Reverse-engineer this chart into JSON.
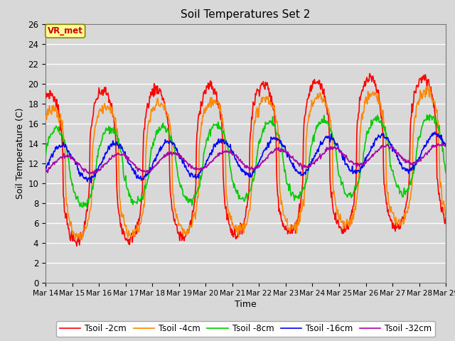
{
  "title": "Soil Temperatures Set 2",
  "xlabel": "Time",
  "ylabel": "Soil Temperature (C)",
  "ylim": [
    0,
    26
  ],
  "yticks": [
    0,
    2,
    4,
    6,
    8,
    10,
    12,
    14,
    16,
    18,
    20,
    22,
    24,
    26
  ],
  "annotation": "VR_met",
  "annotation_color": "#cc0000",
  "annotation_bg": "#ffff99",
  "annotation_edge": "#888800",
  "series_colors": [
    "#ff0000",
    "#ff8800",
    "#00cc00",
    "#0000ff",
    "#aa00aa"
  ],
  "series_labels": [
    "Tsoil -2cm",
    "Tsoil -4cm",
    "Tsoil -8cm",
    "Tsoil -16cm",
    "Tsoil -32cm"
  ],
  "series_linewidths": [
    1.2,
    1.2,
    1.2,
    1.2,
    1.2
  ],
  "bg_color": "#d8d8d8",
  "grid_color": "#ffffff",
  "n_days": 15,
  "start_day": 14
}
